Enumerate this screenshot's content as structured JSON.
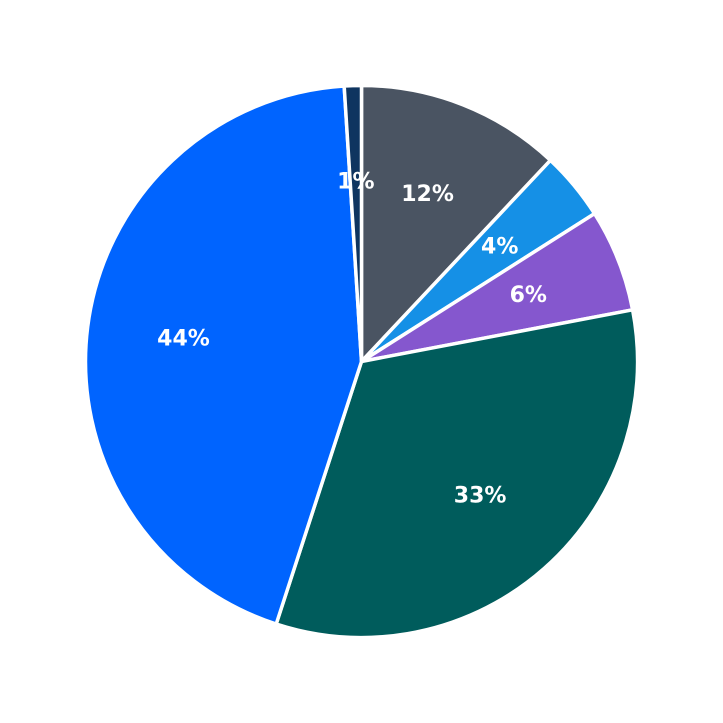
{
  "chart_data": {
    "type": "pie",
    "start_angle_deg": 90,
    "direction": "clockwise",
    "legend": "none",
    "slices": [
      {
        "label_text": "12%",
        "value": 12,
        "color": "#4a5462"
      },
      {
        "label_text": "4%",
        "value": 4,
        "color": "#1590e6"
      },
      {
        "label_text": "6%",
        "value": 6,
        "color": "#8557ce"
      },
      {
        "label_text": "33%",
        "value": 33,
        "color": "#005c5c"
      },
      {
        "label_text": "44%",
        "value": 44,
        "color": "#0064ff"
      },
      {
        "label_text": "1%",
        "value": 1,
        "color": "#0f3560"
      }
    ]
  }
}
